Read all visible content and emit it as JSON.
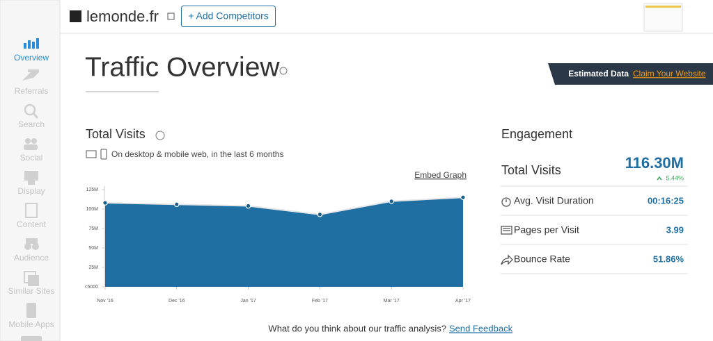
{
  "sidebar": {
    "items": [
      "Overview",
      "Referrals",
      "Search",
      "Social",
      "Display",
      "Content",
      "Audience",
      "Similar Sites",
      "Mobile Apps"
    ]
  },
  "header": {
    "site": "lemonde.fr",
    "button": "+ Add Competitors"
  },
  "page_title": "Traffic Overview",
  "banner": {
    "label": "Estimated Data",
    "link": "Claim Your Website"
  },
  "chart_data": {
    "type": "area",
    "title": "Total Visits",
    "subtitle": "On desktop & mobile web, in the last 6 months",
    "link": "Embed Graph",
    "categories": [
      "Nov '16",
      "Dec '16",
      "Jan '17",
      "Feb '17",
      "Mar '17",
      "Apr '17"
    ],
    "values": [
      108000000,
      106000000,
      104000000,
      93000000,
      110000000,
      115000000
    ],
    "color": "#1f6fa3",
    "ylim": [
      0,
      125000000
    ],
    "yticks": [
      {
        "value": 0,
        "label": "<5000"
      },
      {
        "value": 25000000,
        "label": "25M"
      },
      {
        "value": 50000000,
        "label": "50M"
      },
      {
        "value": 75000000,
        "label": "75M"
      },
      {
        "value": 100000000,
        "label": "100M"
      },
      {
        "value": 125000000,
        "label": "125M"
      }
    ]
  },
  "engagement": {
    "title": "Engagement",
    "total_label": "Total Visits",
    "total_value": "116.30M",
    "change": "5.44%",
    "rows": [
      {
        "label": "Avg. Visit Duration",
        "value": "00:16:25"
      },
      {
        "label": "Pages per Visit",
        "value": "3.99"
      },
      {
        "label": "Bounce Rate",
        "value": "51.86%"
      }
    ]
  },
  "feedback": {
    "text": "What do you think about our traffic analysis?",
    "link": "Send Feedback"
  }
}
